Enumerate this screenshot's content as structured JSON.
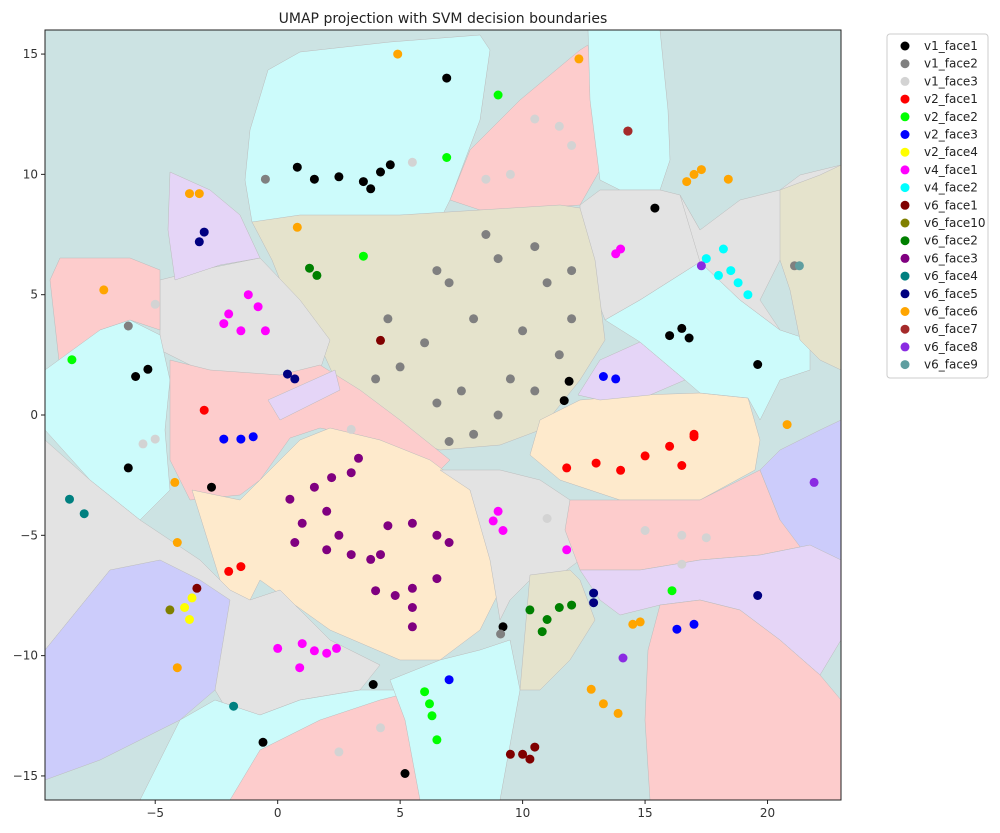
{
  "chart_data": {
    "type": "scatter",
    "title": "UMAP projection with SVM decision boundaries",
    "xlabel": "",
    "ylabel": "",
    "xlim": [
      -9.5,
      23
    ],
    "ylim": [
      -16,
      16
    ],
    "xticks": [
      -5,
      0,
      5,
      10,
      15,
      20
    ],
    "yticks": [
      -15,
      -10,
      -5,
      0,
      5,
      10,
      15
    ],
    "xtick_labels": [
      "−5",
      "0",
      "5",
      "10",
      "15",
      "20"
    ],
    "ytick_labels": [
      "−15",
      "−10",
      "−5",
      "0",
      "5",
      "10",
      "15"
    ],
    "legend_position": "outside-right",
    "series": [
      {
        "name": "v1_face1",
        "color": "#000000",
        "points": [
          [
            0.8,
            10.3
          ],
          [
            1.5,
            9.8
          ],
          [
            2.5,
            9.9
          ],
          [
            3.5,
            9.7
          ],
          [
            4.2,
            10.1
          ],
          [
            4.6,
            10.4
          ],
          [
            3.8,
            9.4
          ],
          [
            16.5,
            3.6
          ],
          [
            16.0,
            3.3
          ],
          [
            16.8,
            3.2
          ],
          [
            -5.8,
            1.6
          ],
          [
            -5.3,
            1.9
          ],
          [
            -2.7,
            -3.0
          ],
          [
            -6.1,
            -2.2
          ],
          [
            9.2,
            -8.8
          ],
          [
            3.9,
            -11.2
          ],
          [
            -0.6,
            -13.6
          ],
          [
            5.2,
            -14.9
          ],
          [
            15.4,
            8.6
          ],
          [
            19.6,
            2.1
          ],
          [
            11.7,
            0.6
          ],
          [
            11.9,
            1.4
          ],
          [
            6.9,
            14.0
          ]
        ]
      },
      {
        "name": "v1_face2",
        "color": "#808080",
        "points": [
          [
            6.0,
            3.0
          ],
          [
            7.0,
            5.5
          ],
          [
            8.0,
            4.0
          ],
          [
            9.0,
            6.5
          ],
          [
            10.0,
            3.5
          ],
          [
            11.0,
            5.5
          ],
          [
            12.0,
            4.0
          ],
          [
            9.5,
            1.5
          ],
          [
            7.5,
            1.0
          ],
          [
            8.5,
            7.5
          ],
          [
            10.5,
            7.0
          ],
          [
            11.5,
            2.5
          ],
          [
            6.5,
            6.0
          ],
          [
            4.5,
            4.0
          ],
          [
            5.0,
            2.0
          ],
          [
            6.5,
            0.5
          ],
          [
            8.0,
            -0.8
          ],
          [
            9.0,
            0.0
          ],
          [
            10.5,
            1.0
          ],
          [
            12.0,
            6.0
          ],
          [
            7.0,
            -1.1
          ],
          [
            4.0,
            1.5
          ],
          [
            -6.1,
            3.7
          ],
          [
            -0.5,
            9.8
          ],
          [
            21.1,
            6.2
          ],
          [
            9.1,
            -9.1
          ]
        ]
      },
      {
        "name": "v1_face3",
        "color": "#d3d3d3",
        "points": [
          [
            10.5,
            12.3
          ],
          [
            11.5,
            12.0
          ],
          [
            12.0,
            11.2
          ],
          [
            9.5,
            10.0
          ],
          [
            8.5,
            9.8
          ],
          [
            5.5,
            10.5
          ],
          [
            -5.0,
            4.6
          ],
          [
            -5.0,
            -1.0
          ],
          [
            -5.5,
            -1.2
          ],
          [
            3.0,
            -0.6
          ],
          [
            11.0,
            -4.3
          ],
          [
            15.0,
            -4.8
          ],
          [
            16.5,
            -5.0
          ],
          [
            17.5,
            -5.1
          ],
          [
            16.5,
            -6.2
          ],
          [
            2.5,
            -14.0
          ],
          [
            4.2,
            -13.0
          ]
        ]
      },
      {
        "name": "v2_face1",
        "color": "#ff0000",
        "points": [
          [
            11.8,
            -2.2
          ],
          [
            13.0,
            -2.0
          ],
          [
            14.0,
            -2.3
          ],
          [
            15.0,
            -1.7
          ],
          [
            16.0,
            -1.3
          ],
          [
            17.0,
            -0.8
          ],
          [
            16.5,
            -2.1
          ],
          [
            17.0,
            -0.9
          ],
          [
            -3.0,
            0.2
          ],
          [
            -2.0,
            -6.5
          ],
          [
            -1.5,
            -6.3
          ]
        ]
      },
      {
        "name": "v2_face2",
        "color": "#00ff00",
        "points": [
          [
            9.0,
            13.3
          ],
          [
            6.9,
            10.7
          ],
          [
            -8.4,
            2.3
          ],
          [
            3.5,
            6.6
          ],
          [
            16.1,
            -7.3
          ],
          [
            6.0,
            -11.5
          ],
          [
            6.3,
            -12.5
          ],
          [
            6.5,
            -13.5
          ],
          [
            6.2,
            -12.0
          ]
        ]
      },
      {
        "name": "v2_face3",
        "color": "#0000ff",
        "points": [
          [
            -2.2,
            -1.0
          ],
          [
            -1.5,
            -1.0
          ],
          [
            -1.0,
            -0.9
          ],
          [
            13.3,
            1.6
          ],
          [
            13.8,
            1.5
          ],
          [
            16.3,
            -8.9
          ],
          [
            17.0,
            -8.7
          ],
          [
            7.0,
            -11.0
          ]
        ]
      },
      {
        "name": "v2_face4",
        "color": "#ffff00",
        "points": [
          [
            -3.8,
            -8.0
          ],
          [
            -3.6,
            -8.5
          ],
          [
            -3.5,
            -7.6
          ]
        ]
      },
      {
        "name": "v4_face1",
        "color": "#ff00ff",
        "points": [
          [
            -2.0,
            4.2
          ],
          [
            -1.5,
            3.5
          ],
          [
            -0.8,
            4.5
          ],
          [
            -1.2,
            5.0
          ],
          [
            -2.2,
            3.8
          ],
          [
            -0.5,
            3.5
          ],
          [
            14.0,
            6.9
          ],
          [
            13.8,
            6.7
          ],
          [
            9.0,
            -4.0
          ],
          [
            8.8,
            -4.4
          ],
          [
            9.2,
            -4.8
          ],
          [
            11.8,
            -5.6
          ],
          [
            1.0,
            -9.5
          ],
          [
            0.9,
            -10.5
          ],
          [
            1.5,
            -9.8
          ],
          [
            2.0,
            -9.9
          ],
          [
            2.4,
            -9.7
          ],
          [
            0.0,
            -9.7
          ]
        ]
      },
      {
        "name": "v4_face2",
        "color": "#00ffff",
        "points": [
          [
            17.5,
            6.5
          ],
          [
            18.2,
            6.9
          ],
          [
            18.5,
            6.0
          ],
          [
            18.8,
            5.5
          ],
          [
            19.2,
            5.0
          ],
          [
            18.0,
            5.8
          ]
        ]
      },
      {
        "name": "v6_face1",
        "color": "#800000",
        "points": [
          [
            4.2,
            3.1
          ],
          [
            -3.3,
            -7.2
          ],
          [
            9.5,
            -14.1
          ],
          [
            10.3,
            -14.3
          ],
          [
            10.0,
            -14.1
          ],
          [
            10.5,
            -13.8
          ],
          [
            14.3,
            11.8
          ]
        ]
      },
      {
        "name": "v6_face10",
        "color": "#808000",
        "points": [
          [
            -4.4,
            -8.1
          ]
        ]
      },
      {
        "name": "v6_face2",
        "color": "#008000",
        "points": [
          [
            1.3,
            6.1
          ],
          [
            1.6,
            5.8
          ],
          [
            10.8,
            -9.0
          ],
          [
            11.0,
            -8.5
          ],
          [
            11.5,
            -8.0
          ],
          [
            12.0,
            -7.9
          ],
          [
            10.3,
            -8.1
          ]
        ]
      },
      {
        "name": "v6_face3",
        "color": "#800080",
        "points": [
          [
            0.5,
            -3.5
          ],
          [
            1.0,
            -4.5
          ],
          [
            1.5,
            -3.0
          ],
          [
            2.2,
            -2.6
          ],
          [
            3.0,
            -2.4
          ],
          [
            3.3,
            -1.8
          ],
          [
            2.0,
            -4.0
          ],
          [
            2.5,
            -5.0
          ],
          [
            3.0,
            -5.8
          ],
          [
            2.0,
            -5.6
          ],
          [
            0.7,
            -5.3
          ],
          [
            4.5,
            -4.6
          ],
          [
            5.5,
            -4.5
          ],
          [
            6.5,
            -5.0
          ],
          [
            7.0,
            -5.3
          ],
          [
            6.5,
            -6.8
          ],
          [
            5.5,
            -7.2
          ],
          [
            5.5,
            -8.0
          ],
          [
            5.5,
            -8.8
          ],
          [
            4.8,
            -7.5
          ],
          [
            4.0,
            -7.3
          ],
          [
            3.8,
            -6.0
          ],
          [
            4.2,
            -5.8
          ]
        ]
      },
      {
        "name": "v6_face4",
        "color": "#008080",
        "points": [
          [
            -8.5,
            -3.5
          ],
          [
            -7.9,
            -4.1
          ],
          [
            -1.8,
            -12.1
          ]
        ]
      },
      {
        "name": "v6_face5",
        "color": "#000080",
        "points": [
          [
            -3.0,
            7.6
          ],
          [
            -3.2,
            7.2
          ],
          [
            0.4,
            1.7
          ],
          [
            0.7,
            1.5
          ],
          [
            19.6,
            -7.5
          ],
          [
            12.9,
            -7.4
          ],
          [
            12.9,
            -7.8
          ]
        ]
      },
      {
        "name": "v6_face6",
        "color": "#ffa500",
        "points": [
          [
            4.9,
            15.0
          ],
          [
            12.3,
            14.8
          ],
          [
            -3.6,
            9.2
          ],
          [
            -3.2,
            9.2
          ],
          [
            0.8,
            7.8
          ],
          [
            -7.1,
            5.2
          ],
          [
            -4.2,
            -2.8
          ],
          [
            -4.1,
            -5.3
          ],
          [
            -4.1,
            -10.5
          ],
          [
            17.0,
            10.0
          ],
          [
            17.3,
            10.2
          ],
          [
            16.7,
            9.7
          ],
          [
            18.4,
            9.8
          ],
          [
            20.8,
            -0.4
          ],
          [
            14.5,
            -8.7
          ],
          [
            14.8,
            -8.6
          ],
          [
            12.8,
            -11.4
          ],
          [
            13.3,
            -12.0
          ],
          [
            13.9,
            -12.4
          ]
        ]
      },
      {
        "name": "v6_face7",
        "color": "#a52a2a",
        "points": [
          [
            14.3,
            11.8
          ]
        ]
      },
      {
        "name": "v6_face8",
        "color": "#8a2be2",
        "points": [
          [
            17.3,
            6.2
          ],
          [
            21.9,
            -2.8
          ],
          [
            14.1,
            -10.1
          ]
        ]
      },
      {
        "name": "v6_face9",
        "color": "#5f9ea0",
        "points": [
          [
            21.3,
            6.2
          ]
        ]
      }
    ],
    "regions": [
      {
        "color": "#cce3e3",
        "label": ""
      },
      {
        "color": "#ccfbfb",
        "label": ""
      },
      {
        "color": "#fdcccc",
        "label": ""
      },
      {
        "color": "#e3e3e3",
        "label": ""
      },
      {
        "color": "#e5e3cc",
        "label": ""
      },
      {
        "color": "#e5d5f7",
        "label": ""
      },
      {
        "color": "#feeacc",
        "label": ""
      },
      {
        "color": "#ccccfb",
        "label": ""
      }
    ]
  }
}
